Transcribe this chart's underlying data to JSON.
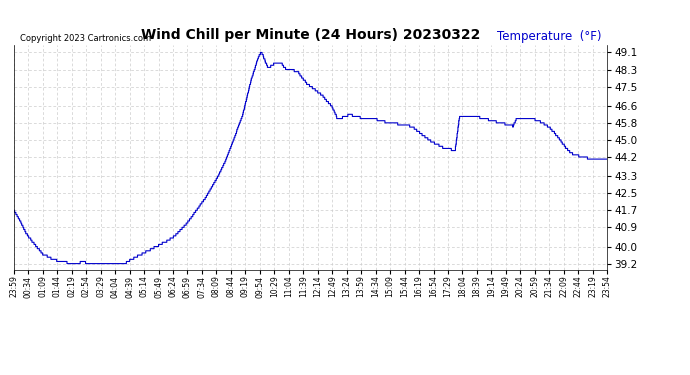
{
  "title": "Wind Chill per Minute (24 Hours) 20230322",
  "copyright_text": "Copyright 2023 Cartronics.com",
  "legend_label": "Temperature  (°F)",
  "line_color": "#0000cc",
  "background_color": "#ffffff",
  "grid_color": "#cccccc",
  "ylim_min": 38.9,
  "ylim_max": 49.45,
  "yticks": [
    39.2,
    40.0,
    40.9,
    41.7,
    42.5,
    43.3,
    44.2,
    45.0,
    45.8,
    46.6,
    47.5,
    48.3,
    49.1
  ],
  "xtick_labels": [
    "23:59",
    "00:34",
    "01:09",
    "01:44",
    "02:19",
    "02:54",
    "03:29",
    "04:04",
    "04:39",
    "05:14",
    "05:49",
    "06:24",
    "06:59",
    "07:34",
    "08:09",
    "08:44",
    "09:19",
    "09:54",
    "10:29",
    "11:04",
    "11:39",
    "12:14",
    "12:49",
    "13:24",
    "13:59",
    "14:34",
    "15:09",
    "15:44",
    "16:19",
    "16:54",
    "17:29",
    "18:04",
    "18:39",
    "19:14",
    "19:49",
    "20:24",
    "20:59",
    "21:34",
    "22:09",
    "22:44",
    "23:19",
    "23:54"
  ],
  "num_points": 1440,
  "keypoints": [
    [
      0,
      41.7
    ],
    [
      15,
      41.2
    ],
    [
      30,
      40.6
    ],
    [
      50,
      40.1
    ],
    [
      70,
      39.65
    ],
    [
      90,
      39.45
    ],
    [
      110,
      39.3
    ],
    [
      140,
      39.22
    ],
    [
      160,
      39.25
    ],
    [
      170,
      39.27
    ],
    [
      180,
      39.22
    ],
    [
      240,
      39.2
    ],
    [
      255,
      39.22
    ],
    [
      270,
      39.22
    ],
    [
      285,
      39.4
    ],
    [
      300,
      39.55
    ],
    [
      315,
      39.7
    ],
    [
      330,
      39.85
    ],
    [
      345,
      40.0
    ],
    [
      360,
      40.15
    ],
    [
      375,
      40.3
    ],
    [
      390,
      40.5
    ],
    [
      405,
      40.8
    ],
    [
      420,
      41.1
    ],
    [
      435,
      41.5
    ],
    [
      450,
      41.9
    ],
    [
      465,
      42.3
    ],
    [
      480,
      42.8
    ],
    [
      495,
      43.3
    ],
    [
      510,
      43.9
    ],
    [
      525,
      44.6
    ],
    [
      540,
      45.4
    ],
    [
      555,
      46.2
    ],
    [
      565,
      47.0
    ],
    [
      575,
      47.8
    ],
    [
      585,
      48.4
    ],
    [
      592,
      48.85
    ],
    [
      597,
      49.05
    ],
    [
      601,
      49.1
    ],
    [
      607,
      48.8
    ],
    [
      612,
      48.55
    ],
    [
      618,
      48.35
    ],
    [
      624,
      48.5
    ],
    [
      630,
      48.55
    ],
    [
      640,
      48.6
    ],
    [
      650,
      48.55
    ],
    [
      658,
      48.35
    ],
    [
      665,
      48.3
    ],
    [
      672,
      48.3
    ],
    [
      680,
      48.25
    ],
    [
      690,
      48.15
    ],
    [
      700,
      47.9
    ],
    [
      710,
      47.65
    ],
    [
      720,
      47.5
    ],
    [
      730,
      47.35
    ],
    [
      740,
      47.2
    ],
    [
      750,
      47.05
    ],
    [
      760,
      46.8
    ],
    [
      770,
      46.6
    ],
    [
      778,
      46.3
    ],
    [
      784,
      46.0
    ],
    [
      790,
      45.95
    ],
    [
      800,
      46.1
    ],
    [
      810,
      46.15
    ],
    [
      820,
      46.15
    ],
    [
      830,
      46.1
    ],
    [
      840,
      46.05
    ],
    [
      850,
      46.05
    ],
    [
      860,
      46.05
    ],
    [
      870,
      46.0
    ],
    [
      880,
      45.95
    ],
    [
      890,
      45.9
    ],
    [
      900,
      45.85
    ],
    [
      910,
      45.8
    ],
    [
      920,
      45.75
    ],
    [
      930,
      45.75
    ],
    [
      940,
      45.72
    ],
    [
      950,
      45.7
    ],
    [
      960,
      45.65
    ],
    [
      970,
      45.55
    ],
    [
      980,
      45.4
    ],
    [
      990,
      45.25
    ],
    [
      1000,
      45.1
    ],
    [
      1010,
      44.95
    ],
    [
      1020,
      44.85
    ],
    [
      1030,
      44.75
    ],
    [
      1040,
      44.65
    ],
    [
      1050,
      44.6
    ],
    [
      1060,
      44.55
    ],
    [
      1070,
      44.5
    ],
    [
      1080,
      46.05
    ],
    [
      1090,
      46.1
    ],
    [
      1100,
      46.12
    ],
    [
      1110,
      46.1
    ],
    [
      1120,
      46.08
    ],
    [
      1130,
      46.05
    ],
    [
      1140,
      46.0
    ],
    [
      1150,
      45.95
    ],
    [
      1160,
      45.9
    ],
    [
      1170,
      45.85
    ],
    [
      1180,
      45.8
    ],
    [
      1190,
      45.75
    ],
    [
      1200,
      45.7
    ],
    [
      1210,
      45.65
    ],
    [
      1220,
      46.05
    ],
    [
      1230,
      46.05
    ],
    [
      1240,
      46.05
    ],
    [
      1250,
      46.02
    ],
    [
      1260,
      45.98
    ],
    [
      1270,
      45.9
    ],
    [
      1280,
      45.82
    ],
    [
      1290,
      45.7
    ],
    [
      1300,
      45.55
    ],
    [
      1310,
      45.35
    ],
    [
      1320,
      45.1
    ],
    [
      1330,
      44.85
    ],
    [
      1340,
      44.6
    ],
    [
      1350,
      44.4
    ],
    [
      1360,
      44.3
    ],
    [
      1370,
      44.25
    ],
    [
      1380,
      44.2
    ],
    [
      1390,
      44.15
    ],
    [
      1400,
      44.12
    ],
    [
      1410,
      44.1
    ],
    [
      1420,
      44.1
    ],
    [
      1430,
      44.1
    ],
    [
      1439,
      44.1
    ]
  ]
}
